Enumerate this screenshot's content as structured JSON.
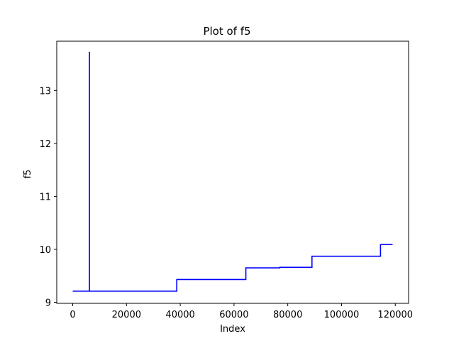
{
  "chart_data": {
    "type": "line",
    "title": "Plot of f5",
    "xlabel": "Index",
    "ylabel": "f5",
    "xlim": [
      -5950,
      124950
    ],
    "ylim": [
      8.98,
      13.93
    ],
    "xticks": [
      0,
      20000,
      40000,
      60000,
      80000,
      100000,
      120000
    ],
    "yticks": [
      9,
      10,
      11,
      12,
      13
    ],
    "grid": false,
    "legend": "none",
    "series": [
      {
        "color": "#0000ff",
        "x": [
          0,
          6200,
          6200,
          6210,
          6210,
          26000,
          26000,
          38700,
          38700,
          51000,
          51000,
          64400,
          64400,
          77000,
          77000,
          89000,
          89000,
          101000,
          101000,
          114500,
          114500,
          119000
        ],
        "y": [
          9.21,
          9.21,
          13.72,
          13.72,
          9.21,
          9.21,
          9.21,
          9.21,
          9.43,
          9.43,
          9.43,
          9.43,
          9.65,
          9.65,
          9.66,
          9.66,
          9.87,
          9.87,
          9.87,
          9.87,
          10.09,
          10.09
        ]
      }
    ]
  }
}
